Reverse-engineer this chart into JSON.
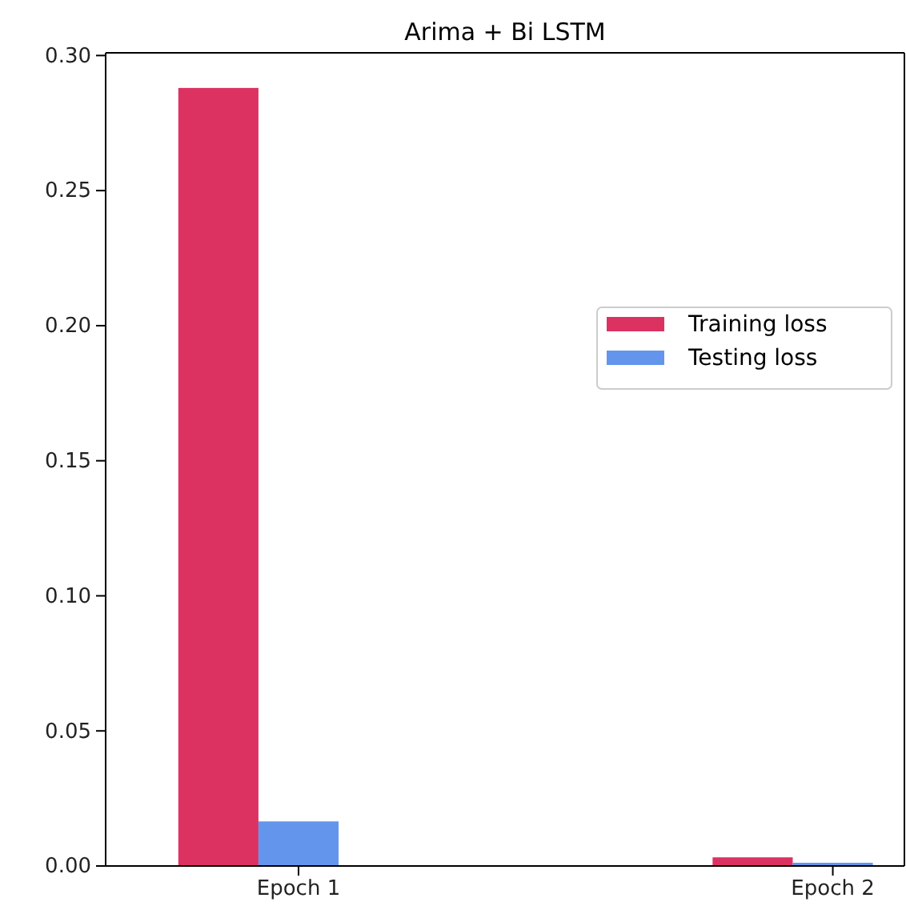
{
  "chart_data": {
    "type": "bar",
    "title": "Arima + Bi LSTM",
    "categories": [
      "Epoch 1",
      "Epoch 2"
    ],
    "series": [
      {
        "name": "Training loss",
        "color": "#dc3262",
        "values": [
          0.288,
          0.0032
        ]
      },
      {
        "name": "Testing loss",
        "color": "#6495ed",
        "values": [
          0.0165,
          0.0012
        ]
      }
    ],
    "ylim": [
      0,
      0.301
    ],
    "yticks": [
      {
        "value": 0,
        "label": "0.00"
      },
      {
        "value": 0.05,
        "label": "0.05"
      },
      {
        "value": 0.1,
        "label": "0.10"
      },
      {
        "value": 0.15,
        "label": "0.15"
      },
      {
        "value": 0.2,
        "label": "0.20"
      },
      {
        "value": 0.25,
        "label": "0.25"
      },
      {
        "value": 0.3,
        "label": "0.30"
      }
    ],
    "legend": "center right",
    "grid": false
  }
}
